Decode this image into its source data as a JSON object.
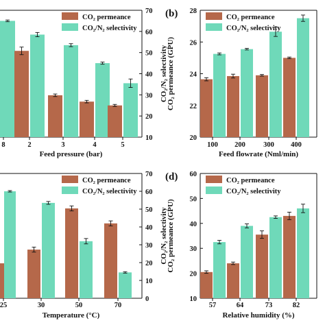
{
  "colors": {
    "co2_permeance": "#b5684a",
    "selectivity": "#6fd9b9",
    "axis": "#111111"
  },
  "chart_data": [
    {
      "type": "bar",
      "panel": "",
      "legend_position": "top-right",
      "legend": [
        "CO₂ permeance",
        "CO₂/N₂ selectivity"
      ],
      "xlabel": "Feed pressure (bar)",
      "ylabel_left": "",
      "ylabel_right": "CO₂/N₂ selectivity",
      "categories": [
        "8",
        "2",
        "3",
        "4",
        "5"
      ],
      "left_axis": {
        "ylim": [
          0,
          10
        ],
        "ticks": [],
        "tick_labels": []
      },
      "right_axis": {
        "ylim": [
          10,
          70
        ],
        "ticks": [
          10,
          20,
          30,
          40,
          50,
          60,
          70
        ],
        "tick_labels": [
          "10",
          "20",
          "30",
          "40",
          "50",
          "60",
          "70"
        ]
      },
      "series": [
        {
          "name": "CO₂ permeance",
          "axis": "left",
          "values": [
            null,
            6.8,
            3.3,
            2.8,
            2.5
          ],
          "errors": [
            0,
            0.3,
            0.1,
            0.1,
            0.08
          ]
        },
        {
          "name": "CO₂/N₂ selectivity",
          "axis": "right",
          "values": [
            65.0,
            58.5,
            53.5,
            45.0,
            35.5
          ],
          "errors": [
            0.4,
            1.0,
            0.7,
            0.5,
            2.0
          ]
        }
      ]
    },
    {
      "type": "bar",
      "panel": "(b)",
      "legend_position": "top-left",
      "legend": [
        "CO₂ permeance",
        "CO₂/N₂ selectivity"
      ],
      "xlabel": "Feed flowrate (Nml/min)",
      "ylabel_left": "CO₂ permeance (GPU)",
      "ylabel_right": "",
      "categories": [
        "100",
        "200",
        "300",
        "400"
      ],
      "left_axis": {
        "ylim": [
          20,
          28
        ],
        "ticks": [
          20,
          22,
          24,
          26,
          28
        ],
        "tick_labels": [
          "20",
          "22",
          "24",
          "26",
          "28"
        ]
      },
      "series": [
        {
          "name": "CO₂ permeance",
          "axis": "left",
          "values": [
            23.65,
            23.85,
            23.9,
            25.0
          ],
          "errors": [
            0.1,
            0.12,
            0.05,
            0.05
          ]
        },
        {
          "name": "CO₂/N₂ selectivity",
          "axis": "left",
          "values": [
            25.25,
            25.55,
            26.65,
            27.5
          ],
          "errors": [
            0.06,
            0.05,
            0.3,
            0.2
          ]
        }
      ]
    },
    {
      "type": "bar",
      "panel": "",
      "legend_position": "top-right",
      "legend": [
        "CO₂ permeance",
        "CO₂/N₂ selectivity"
      ],
      "xlabel": "Temperature (°C)",
      "ylabel_left": "",
      "ylabel_right": "CO₂/N₂ selectivity",
      "categories": [
        "25",
        "30",
        "50",
        "70"
      ],
      "left_axis": {
        "ylim": [
          0,
          10
        ],
        "ticks": [],
        "tick_labels": []
      },
      "right_axis": {
        "ylim": [
          0,
          70
        ],
        "ticks": [
          0,
          10,
          20,
          30,
          40,
          50,
          60,
          70
        ],
        "tick_labels": [
          "0",
          "10",
          "20",
          "30",
          "40",
          "50",
          "60",
          "70"
        ]
      },
      "series": [
        {
          "name": "CO₂ permeance",
          "axis": "left",
          "values": [
            2.8,
            3.9,
            7.2,
            6.0
          ],
          "errors": [
            0,
            0.2,
            0.2,
            0.2
          ]
        },
        {
          "name": "CO₂/N₂ selectivity",
          "axis": "right",
          "values": [
            60.0,
            53.5,
            32.0,
            14.5
          ],
          "errors": [
            0.4,
            0.8,
            1.5,
            0.4
          ]
        }
      ]
    },
    {
      "type": "bar",
      "panel": "(d)",
      "legend_position": "top-left",
      "legend": [
        "CO₂ permeance",
        "CO₂/N₂ selectivity"
      ],
      "xlabel": "Relative humidity (%)",
      "ylabel_left": "CO₂ permeance (GPU)",
      "ylabel_right": "",
      "categories": [
        "57",
        "64",
        "73",
        "82"
      ],
      "left_axis": {
        "ylim": [
          10,
          60
        ],
        "ticks": [
          10,
          20,
          30,
          40,
          50,
          60
        ],
        "tick_labels": [
          "10",
          "20",
          "30",
          "40",
          "50",
          "60"
        ]
      },
      "series": [
        {
          "name": "CO₂ permeance",
          "axis": "left",
          "values": [
            20.5,
            24.0,
            35.5,
            43.0
          ],
          "errors": [
            0.5,
            0.5,
            1.5,
            1.5
          ]
        },
        {
          "name": "CO₂/N₂ selectivity",
          "axis": "left",
          "values": [
            32.5,
            39.0,
            42.5,
            46.0
          ],
          "errors": [
            0.7,
            0.8,
            0.5,
            1.7
          ]
        }
      ]
    }
  ]
}
